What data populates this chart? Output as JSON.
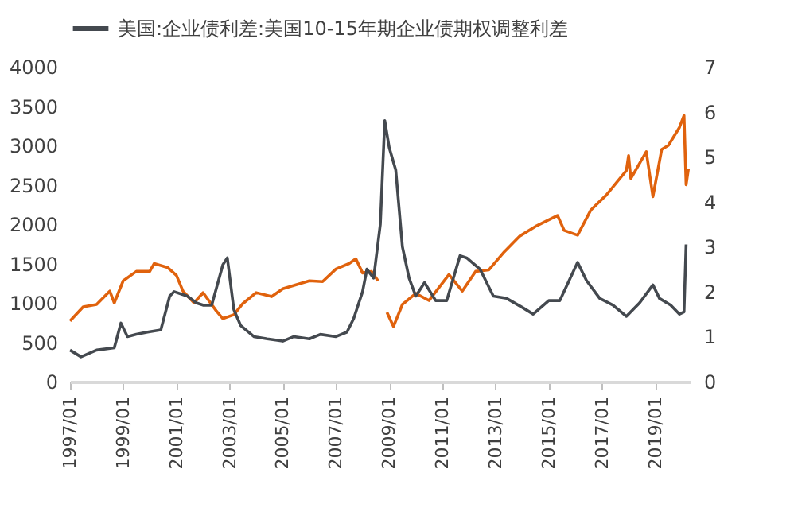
{
  "chart_data": {
    "type": "line",
    "legend": "top left",
    "grid": false,
    "line_style": "solid",
    "marker": "none",
    "xlim": [
      "1997-01",
      "2020-05"
    ],
    "xticks": [
      {
        "value": "1997-01",
        "label": "1997/01"
      },
      {
        "value": "1999-01",
        "label": "1999/01"
      },
      {
        "value": "2001-01",
        "label": "2001/01"
      },
      {
        "value": "2003-01",
        "label": "2003/01"
      },
      {
        "value": "2005-01",
        "label": "2005/01"
      },
      {
        "value": "2007-01",
        "label": "2007/01"
      },
      {
        "value": "2009-01",
        "label": "2009/01"
      },
      {
        "value": "2011-01",
        "label": "2011/01"
      },
      {
        "value": "2013-01",
        "label": "2013/01"
      },
      {
        "value": "2015-01",
        "label": "2015/01"
      },
      {
        "value": "2017-01",
        "label": "2017/01"
      },
      {
        "value": "2019-01",
        "label": "2019/01"
      }
    ],
    "ylim": [
      0,
      4000
    ],
    "yticks": [
      0,
      500,
      1000,
      1500,
      2000,
      2500,
      3000,
      3500,
      4000
    ],
    "y2lim": [
      0,
      7
    ],
    "y2ticks": [
      0,
      1,
      2,
      3,
      4,
      5,
      6,
      7
    ],
    "series": [
      {
        "color": "#e0620d",
        "axis": "y",
        "x": [
          "1997-01",
          "1997-07",
          "1998-01",
          "1998-07",
          "1998-09",
          "1999-01",
          "1999-07",
          "2000-01",
          "2000-03",
          "2000-09",
          "2001-01",
          "2001-04",
          "2001-09",
          "2002-01",
          "2002-07",
          "2002-10",
          "2003-03",
          "2003-07",
          "2004-01",
          "2004-08",
          "2005-01",
          "2005-07",
          "2006-01",
          "2006-07",
          "2007-01",
          "2007-07",
          "2007-10",
          "2008-01",
          "2008-05",
          "2008-08",
          "2008-10",
          "2008-12",
          "2009-03",
          "2009-07",
          "2010-01",
          "2010-07",
          "2011-04",
          "2011-10",
          "2012-04",
          "2012-10",
          "2013-05",
          "2013-12",
          "2014-07",
          "2015-05",
          "2015-08",
          "2016-02",
          "2016-08",
          "2017-03",
          "2017-12",
          "2018-01",
          "2018-02",
          "2018-09",
          "2018-12",
          "2019-04",
          "2019-07",
          "2019-12",
          "2020-02",
          "2020-03",
          "2020-04"
        ],
        "values": [
          770,
          950,
          980,
          1150,
          1000,
          1280,
          1400,
          1400,
          1500,
          1450,
          1350,
          1150,
          1000,
          1130,
          900,
          800,
          850,
          990,
          1130,
          1080,
          1180,
          1230,
          1280,
          1270,
          1430,
          1500,
          1560,
          1380,
          1400,
          1280,
          null,
          880,
          700,
          980,
          1120,
          1030,
          1360,
          1150,
          1400,
          1420,
          1650,
          1850,
          1970,
          2110,
          1920,
          1860,
          2180,
          2370,
          2680,
          2870,
          2580,
          2920,
          2350,
          2950,
          3000,
          3230,
          3380,
          2500,
          2700
        ]
      },
      {
        "name": "美国:企业债利差:美国10-15年期企业债期权调整利差",
        "color": "#44494f",
        "axis": "y2",
        "x": [
          "1997-01",
          "1997-06",
          "1998-01",
          "1998-09",
          "1998-12",
          "1999-03",
          "1999-07",
          "1999-12",
          "2000-06",
          "2000-10",
          "2000-12",
          "2001-06",
          "2001-10",
          "2002-01",
          "2002-05",
          "2002-10",
          "2002-12",
          "2003-03",
          "2003-06",
          "2003-12",
          "2004-06",
          "2005-01",
          "2005-06",
          "2006-01",
          "2006-06",
          "2007-01",
          "2007-06",
          "2007-09",
          "2008-01",
          "2008-03",
          "2008-06",
          "2008-09",
          "2008-11",
          "2009-01",
          "2009-04",
          "2009-07",
          "2009-10",
          "2010-01",
          "2010-05",
          "2010-10",
          "2011-03",
          "2011-09",
          "2011-12",
          "2012-06",
          "2012-12",
          "2013-06",
          "2014-01",
          "2014-06",
          "2015-01",
          "2015-06",
          "2016-02",
          "2016-06",
          "2016-12",
          "2017-06",
          "2017-12",
          "2018-06",
          "2018-12",
          "2019-03",
          "2019-08",
          "2019-12",
          "2020-02",
          "2020-03"
        ],
        "values": [
          0.7,
          0.55,
          0.7,
          0.75,
          1.3,
          1.0,
          1.05,
          1.1,
          1.15,
          1.9,
          2.0,
          1.9,
          1.75,
          1.7,
          1.7,
          2.6,
          2.75,
          1.6,
          1.25,
          1.0,
          0.95,
          0.9,
          1.0,
          0.95,
          1.05,
          1.0,
          1.1,
          1.4,
          2.0,
          2.5,
          2.3,
          3.5,
          5.8,
          5.2,
          4.7,
          3.0,
          2.3,
          1.9,
          2.2,
          1.8,
          1.8,
          2.8,
          2.75,
          2.5,
          1.9,
          1.85,
          1.65,
          1.5,
          1.8,
          1.8,
          2.65,
          2.25,
          1.85,
          1.7,
          1.45,
          1.75,
          2.15,
          1.85,
          1.7,
          1.5,
          1.55,
          3.05
        ]
      }
    ]
  }
}
